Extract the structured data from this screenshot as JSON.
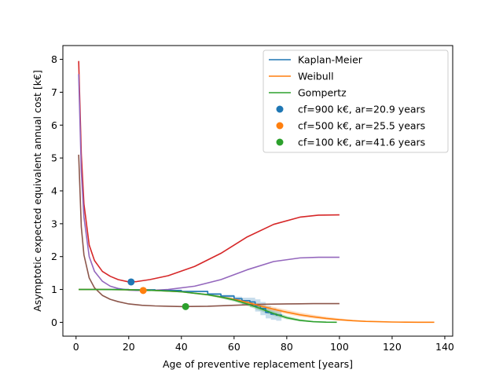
{
  "chart_data": {
    "type": "line",
    "xlabel": "Age of preventive replacement [years]",
    "ylabel": "Asymptotic expected equivalent annual cost [k€]",
    "xlim": [
      -5,
      143
    ],
    "ylim": [
      -0.42,
      8.42
    ],
    "xticks": [
      0,
      20,
      40,
      60,
      80,
      100,
      120,
      140
    ],
    "yticks": [
      0,
      1,
      2,
      3,
      4,
      5,
      6,
      7,
      8
    ],
    "grid": false,
    "legend_position": "top-right",
    "legend": [
      {
        "label": "Kaplan-Meier",
        "kind": "line",
        "color": "#1f77b4"
      },
      {
        "label": "Weibull",
        "kind": "line",
        "color": "#ff7f0e"
      },
      {
        "label": "Gompertz",
        "kind": "line",
        "color": "#2ca02c"
      },
      {
        "label": " cf=900 k€, ar=20.9 years",
        "kind": "marker",
        "color": "#1f77b4"
      },
      {
        "label": " cf=500 k€, ar=25.5 years",
        "kind": "marker",
        "color": "#ff7f0e"
      },
      {
        "label": " cf=100 k€, ar=41.6 years",
        "kind": "marker",
        "color": "#2ca02c"
      }
    ],
    "series": [
      {
        "color": "#d62728",
        "x": [
          1,
          2,
          3,
          5,
          7,
          10,
          13,
          16,
          20,
          23,
          28,
          35,
          45,
          55,
          65,
          75,
          85,
          92,
          100
        ],
        "y": [
          7.95,
          5.1,
          3.6,
          2.35,
          1.88,
          1.55,
          1.4,
          1.3,
          1.23,
          1.24,
          1.3,
          1.42,
          1.7,
          2.1,
          2.6,
          2.98,
          3.2,
          3.26,
          3.27
        ]
      },
      {
        "color": "#9467bd",
        "x": [
          1,
          2,
          3,
          5,
          7,
          10,
          13,
          16,
          20,
          23,
          28,
          35,
          45,
          55,
          65,
          75,
          85,
          92,
          100
        ],
        "y": [
          7.55,
          4.6,
          3.2,
          2.0,
          1.55,
          1.25,
          1.1,
          1.03,
          0.98,
          0.97,
          0.97,
          1.0,
          1.1,
          1.3,
          1.6,
          1.85,
          1.96,
          1.98,
          1.98
        ]
      },
      {
        "color": "#8c564b",
        "x": [
          1,
          2,
          3,
          5,
          7,
          10,
          13,
          16,
          20,
          25,
          30,
          35,
          40,
          50,
          60,
          70,
          80,
          90,
          100
        ],
        "y": [
          5.1,
          2.9,
          2.05,
          1.35,
          1.05,
          0.82,
          0.7,
          0.63,
          0.56,
          0.52,
          0.5,
          0.49,
          0.48,
          0.49,
          0.52,
          0.55,
          0.56,
          0.57,
          0.57
        ]
      },
      {
        "name": "Kaplan-Meier",
        "color": "#1f77b4",
        "step": true,
        "x": [
          1,
          10,
          20,
          30,
          40,
          50,
          55,
          60,
          63,
          66,
          68,
          70,
          72,
          74,
          76,
          78
        ],
        "y": [
          1.0,
          1.0,
          0.99,
          0.97,
          0.94,
          0.86,
          0.8,
          0.72,
          0.66,
          0.62,
          0.5,
          0.42,
          0.3,
          0.25,
          0.22,
          0.2
        ],
        "band_low": [
          1.0,
          1.0,
          0.98,
          0.96,
          0.92,
          0.83,
          0.76,
          0.66,
          0.55,
          0.46,
          0.33,
          0.22,
          0.12,
          0.08,
          0.05,
          0.05
        ],
        "band_high": [
          1.0,
          1.0,
          1.0,
          0.98,
          0.96,
          0.89,
          0.84,
          0.78,
          0.75,
          0.75,
          0.7,
          0.62,
          0.5,
          0.43,
          0.38,
          0.35
        ]
      },
      {
        "name": "Weibull",
        "color": "#ff7f0e",
        "x": [
          1,
          10,
          20,
          30,
          40,
          50,
          60,
          65,
          70,
          75,
          80,
          85,
          90,
          95,
          100,
          105,
          110,
          115,
          120,
          125,
          130,
          136
        ],
        "y": [
          1.0,
          1.0,
          0.99,
          0.97,
          0.93,
          0.84,
          0.7,
          0.61,
          0.5,
          0.4,
          0.31,
          0.23,
          0.17,
          0.12,
          0.08,
          0.05,
          0.03,
          0.02,
          0.01,
          0.005,
          0.003,
          0.002
        ],
        "band_low": [
          1.0,
          1.0,
          0.98,
          0.96,
          0.92,
          0.82,
          0.66,
          0.56,
          0.44,
          0.34,
          0.25,
          0.17,
          0.12,
          0.08,
          0.05,
          0.03,
          0.02,
          0.01,
          0.0,
          0.0,
          0.0,
          0.0
        ],
        "band_high": [
          1.0,
          1.0,
          1.0,
          0.98,
          0.94,
          0.86,
          0.74,
          0.66,
          0.56,
          0.47,
          0.38,
          0.3,
          0.23,
          0.17,
          0.12,
          0.08,
          0.05,
          0.03,
          0.02,
          0.01,
          0.005,
          0.004
        ]
      },
      {
        "name": "Gompertz",
        "color": "#2ca02c",
        "x": [
          1,
          10,
          20,
          30,
          40,
          50,
          55,
          60,
          65,
          70,
          75,
          80,
          85,
          90,
          95,
          99
        ],
        "y": [
          1.0,
          1.0,
          0.99,
          0.97,
          0.93,
          0.84,
          0.77,
          0.68,
          0.56,
          0.42,
          0.27,
          0.14,
          0.06,
          0.02,
          0.005,
          0.002
        ],
        "band_low": [
          1.0,
          1.0,
          0.98,
          0.96,
          0.91,
          0.81,
          0.73,
          0.63,
          0.5,
          0.35,
          0.2,
          0.09,
          0.03,
          0.01,
          0.0,
          0.0
        ],
        "band_high": [
          1.0,
          1.0,
          1.0,
          0.98,
          0.95,
          0.87,
          0.81,
          0.73,
          0.62,
          0.49,
          0.34,
          0.2,
          0.1,
          0.04,
          0.01,
          0.005
        ]
      }
    ],
    "points": [
      {
        "x": 20.9,
        "y": 1.23,
        "color": "#1f77b4"
      },
      {
        "x": 25.5,
        "y": 0.97,
        "color": "#ff7f0e"
      },
      {
        "x": 41.6,
        "y": 0.48,
        "color": "#2ca02c"
      }
    ]
  }
}
